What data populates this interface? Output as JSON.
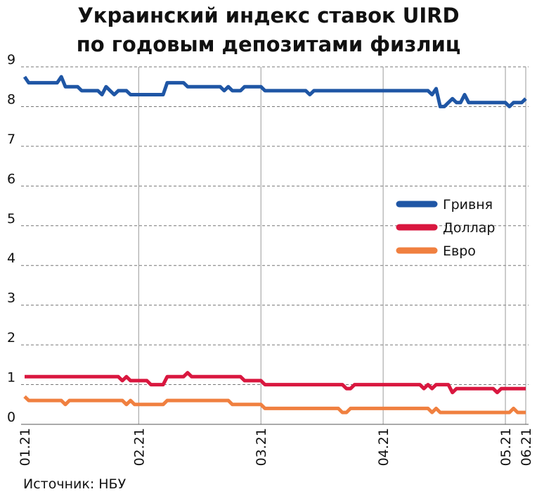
{
  "chart_data": {
    "type": "line",
    "title": [
      "Украинский индекс ставок UIRD",
      "по годовым депозитами физлиц"
    ],
    "source": "Источник: НБУ",
    "categories": [
      "01.21",
      null,
      null,
      null,
      null,
      null,
      null,
      null,
      null,
      null,
      null,
      null,
      null,
      null,
      null,
      null,
      null,
      null,
      null,
      null,
      null,
      null,
      null,
      null,
      null,
      null,
      null,
      null,
      "02.21",
      null,
      null,
      null,
      null,
      null,
      null,
      null,
      null,
      null,
      null,
      null,
      null,
      null,
      null,
      null,
      null,
      null,
      null,
      null,
      null,
      null,
      null,
      null,
      null,
      null,
      null,
      null,
      null,
      null,
      "03.21",
      null,
      null,
      null,
      null,
      null,
      null,
      null,
      null,
      null,
      null,
      null,
      null,
      null,
      null,
      null,
      null,
      null,
      null,
      null,
      null,
      null,
      null,
      null,
      null,
      null,
      null,
      null,
      null,
      null,
      "04.21",
      null,
      null,
      null,
      null,
      null,
      null,
      null,
      null,
      null,
      null,
      null,
      null,
      null,
      null,
      null,
      null,
      null,
      null,
      null,
      null,
      null,
      null,
      null,
      null,
      null,
      null,
      null,
      null,
      null,
      "05.21",
      null,
      null,
      null,
      null,
      "06.21"
    ],
    "series": [
      {
        "name": "Гривня",
        "color": "#1f56a5",
        "values": [
          8.75,
          8.6,
          8.6,
          8.6,
          8.6,
          8.6,
          8.6,
          8.6,
          8.6,
          8.75,
          8.5,
          8.5,
          8.5,
          8.5,
          8.4,
          8.4,
          8.4,
          8.4,
          8.4,
          8.3,
          8.5,
          8.4,
          8.3,
          8.4,
          8.4,
          8.4,
          8.3,
          8.3,
          8.3,
          8.3,
          8.3,
          8.3,
          8.3,
          8.3,
          8.3,
          8.6,
          8.6,
          8.6,
          8.6,
          8.6,
          8.5,
          8.5,
          8.5,
          8.5,
          8.5,
          8.5,
          8.5,
          8.5,
          8.5,
          8.4,
          8.5,
          8.4,
          8.4,
          8.4,
          8.5,
          8.5,
          8.5,
          8.5,
          8.5,
          8.4,
          8.4,
          8.4,
          8.4,
          8.4,
          8.4,
          8.4,
          8.4,
          8.4,
          8.4,
          8.4,
          8.3,
          8.4,
          8.4,
          8.4,
          8.4,
          8.4,
          8.4,
          8.4,
          8.4,
          8.4,
          8.4,
          8.4,
          8.4,
          8.4,
          8.4,
          8.4,
          8.4,
          8.4,
          8.4,
          8.4,
          8.4,
          8.4,
          8.4,
          8.4,
          8.4,
          8.4,
          8.4,
          8.4,
          8.4,
          8.4,
          8.3,
          8.45,
          8.0,
          8.0,
          8.1,
          8.2,
          8.1,
          8.1,
          8.3,
          8.1,
          8.1,
          8.1,
          8.1,
          8.1,
          8.1,
          8.1,
          8.1,
          8.1,
          8.1,
          8.0,
          8.1,
          8.1,
          8.1,
          8.2
        ]
      },
      {
        "name": "Доллар",
        "color": "#d9173f",
        "values": [
          1.2,
          1.2,
          1.2,
          1.2,
          1.2,
          1.2,
          1.2,
          1.2,
          1.2,
          1.2,
          1.2,
          1.2,
          1.2,
          1.2,
          1.2,
          1.2,
          1.2,
          1.2,
          1.2,
          1.2,
          1.2,
          1.2,
          1.2,
          1.2,
          1.1,
          1.2,
          1.1,
          1.1,
          1.1,
          1.1,
          1.1,
          1.0,
          1.0,
          1.0,
          1.0,
          1.2,
          1.2,
          1.2,
          1.2,
          1.2,
          1.3,
          1.2,
          1.2,
          1.2,
          1.2,
          1.2,
          1.2,
          1.2,
          1.2,
          1.2,
          1.2,
          1.2,
          1.2,
          1.2,
          1.1,
          1.1,
          1.1,
          1.1,
          1.1,
          1.0,
          1.0,
          1.0,
          1.0,
          1.0,
          1.0,
          1.0,
          1.0,
          1.0,
          1.0,
          1.0,
          1.0,
          1.0,
          1.0,
          1.0,
          1.0,
          1.0,
          1.0,
          1.0,
          1.0,
          0.9,
          0.9,
          1.0,
          1.0,
          1.0,
          1.0,
          1.0,
          1.0,
          1.0,
          1.0,
          1.0,
          1.0,
          1.0,
          1.0,
          1.0,
          1.0,
          1.0,
          1.0,
          1.0,
          0.9,
          1.0,
          0.9,
          1.0,
          1.0,
          1.0,
          1.0,
          0.8,
          0.9,
          0.9,
          0.9,
          0.9,
          0.9,
          0.9,
          0.9,
          0.9,
          0.9,
          0.9,
          0.8,
          0.9,
          0.9,
          0.9,
          0.9,
          0.9,
          0.9,
          0.9
        ]
      },
      {
        "name": "Евро",
        "color": "#f08040",
        "values": [
          0.7,
          0.6,
          0.6,
          0.6,
          0.6,
          0.6,
          0.6,
          0.6,
          0.6,
          0.6,
          0.5,
          0.6,
          0.6,
          0.6,
          0.6,
          0.6,
          0.6,
          0.6,
          0.6,
          0.6,
          0.6,
          0.6,
          0.6,
          0.6,
          0.6,
          0.5,
          0.6,
          0.5,
          0.5,
          0.5,
          0.5,
          0.5,
          0.5,
          0.5,
          0.5,
          0.6,
          0.6,
          0.6,
          0.6,
          0.6,
          0.6,
          0.6,
          0.6,
          0.6,
          0.6,
          0.6,
          0.6,
          0.6,
          0.6,
          0.6,
          0.6,
          0.5,
          0.5,
          0.5,
          0.5,
          0.5,
          0.5,
          0.5,
          0.5,
          0.4,
          0.4,
          0.4,
          0.4,
          0.4,
          0.4,
          0.4,
          0.4,
          0.4,
          0.4,
          0.4,
          0.4,
          0.4,
          0.4,
          0.4,
          0.4,
          0.4,
          0.4,
          0.4,
          0.3,
          0.3,
          0.4,
          0.4,
          0.4,
          0.4,
          0.4,
          0.4,
          0.4,
          0.4,
          0.4,
          0.4,
          0.4,
          0.4,
          0.4,
          0.4,
          0.4,
          0.4,
          0.4,
          0.4,
          0.4,
          0.4,
          0.3,
          0.4,
          0.3,
          0.3,
          0.3,
          0.3,
          0.3,
          0.3,
          0.3,
          0.3,
          0.3,
          0.3,
          0.3,
          0.3,
          0.3,
          0.3,
          0.3,
          0.3,
          0.3,
          0.3,
          0.4,
          0.3,
          0.3,
          0.3
        ]
      }
    ],
    "ylim": [
      0,
      9
    ],
    "yticks": [
      0,
      1,
      2,
      3,
      4,
      5,
      6,
      7,
      8,
      9
    ],
    "grid": true,
    "legend": "right"
  }
}
